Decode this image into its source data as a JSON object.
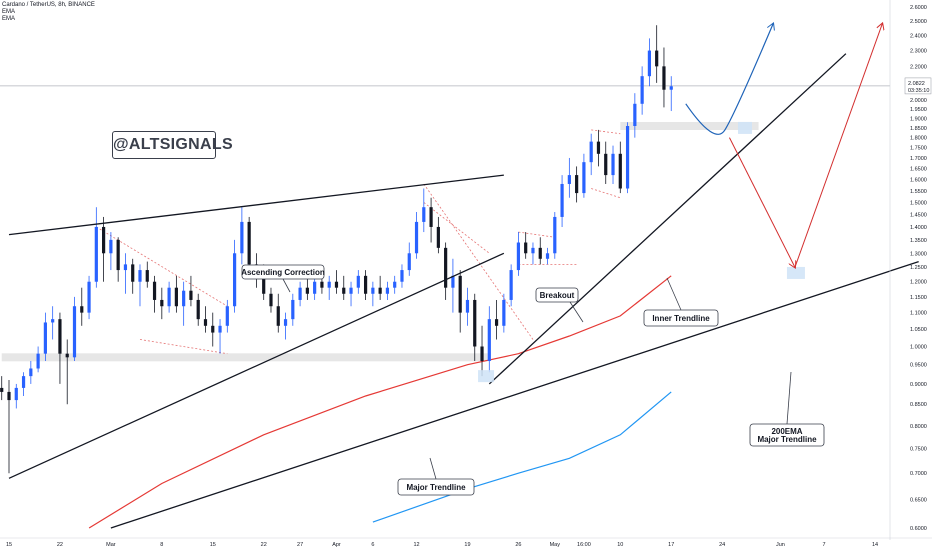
{
  "header": {
    "title": "Cardano / TetherUS, 8h, BINANCE",
    "indicators": [
      "EMA",
      "EMA"
    ]
  },
  "watermark": "@ALTSIGNALS",
  "price_labels": {
    "current_price": "2.0822",
    "countdown": "03:35:10"
  },
  "annotations": {
    "ascending_correction": "Ascending Correction",
    "breakout": "Breakout",
    "inner_trendline": "Inner Trendline",
    "major_trendline": "Major Trendline",
    "ema_major_line1": "200EMA",
    "ema_major_line2": "Major Trendline"
  },
  "colors": {
    "up": "#2962ff",
    "down": "#131722",
    "ema200": "#e53935",
    "ema_fast": "#2196f3",
    "projection_up": "#1e63b8",
    "projection_path": "#d32f2f",
    "zone": "#e6e6e6",
    "target_box": "#cfe3f7",
    "price_line": "#b0b3bb"
  },
  "chart_data": {
    "type": "candlestick",
    "title": "Cardano / TetherUS, 8h, BINANCE",
    "xlabel": "",
    "ylabel": "",
    "ylim": [
      0.6,
      2.6
    ],
    "y_scale": "log",
    "y_ticks": [
      "2.6000",
      "2.5000",
      "2.4000",
      "2.3000",
      "2.2000",
      "2.1000",
      "2.0000",
      "1.9500",
      "1.9000",
      "1.8500",
      "1.8000",
      "1.7500",
      "1.7000",
      "1.6500",
      "1.6000",
      "1.5500",
      "1.5000",
      "1.4500",
      "1.4000",
      "1.3500",
      "1.3000",
      "1.2500",
      "1.2000",
      "1.1500",
      "1.1000",
      "1.0500",
      "1.0000",
      "0.9500",
      "0.9000",
      "0.8500",
      "0.8000",
      "0.7500",
      "0.7000",
      "0.6500",
      "0.6000"
    ],
    "x_ticks": [
      {
        "label": "15",
        "date": "2021-02-15"
      },
      {
        "label": "22",
        "date": "2021-02-22"
      },
      {
        "label": "Mar",
        "date": "2021-03-01"
      },
      {
        "label": "8",
        "date": "2021-03-08"
      },
      {
        "label": "15",
        "date": "2021-03-15"
      },
      {
        "label": "22",
        "date": "2021-03-22"
      },
      {
        "label": "27",
        "date": "2021-03-27"
      },
      {
        "label": "Apr",
        "date": "2021-04-01"
      },
      {
        "label": "6",
        "date": "2021-04-06"
      },
      {
        "label": "12",
        "date": "2021-04-12"
      },
      {
        "label": "19",
        "date": "2021-04-19"
      },
      {
        "label": "26",
        "date": "2021-04-26"
      },
      {
        "label": "May",
        "date": "2021-05-01"
      },
      {
        "label": "16:00",
        "date": "2021-05-05"
      },
      {
        "label": "10",
        "date": "2021-05-10"
      },
      {
        "label": "17",
        "date": "2021-05-17"
      },
      {
        "label": "24",
        "date": "2021-05-24"
      },
      {
        "label": "Jun",
        "date": "2021-06-01"
      },
      {
        "label": "7",
        "date": "2021-06-07"
      },
      {
        "label": "14",
        "date": "2021-06-14"
      }
    ],
    "ohlc": [
      [
        "2021-02-14",
        0.89,
        0.92,
        0.86,
        0.88
      ],
      [
        "2021-02-15",
        0.88,
        0.91,
        0.7,
        0.86
      ],
      [
        "2021-02-16",
        0.86,
        0.9,
        0.84,
        0.89
      ],
      [
        "2021-02-17",
        0.89,
        0.93,
        0.87,
        0.92
      ],
      [
        "2021-02-18",
        0.92,
        0.96,
        0.9,
        0.94
      ],
      [
        "2021-02-19",
        0.94,
        1.0,
        0.93,
        0.98
      ],
      [
        "2021-02-20",
        0.98,
        1.1,
        0.96,
        1.07
      ],
      [
        "2021-02-21",
        1.07,
        1.12,
        1.02,
        1.08
      ],
      [
        "2021-02-22",
        1.08,
        1.1,
        0.9,
        0.98
      ],
      [
        "2021-02-23",
        0.98,
        1.02,
        0.85,
        0.97
      ],
      [
        "2021-02-24",
        0.97,
        1.15,
        0.96,
        1.12
      ],
      [
        "2021-02-25",
        1.12,
        1.18,
        1.06,
        1.1
      ],
      [
        "2021-02-26",
        1.1,
        1.22,
        1.08,
        1.2
      ],
      [
        "2021-02-27",
        1.2,
        1.48,
        1.18,
        1.4
      ],
      [
        "2021-02-28",
        1.4,
        1.44,
        1.2,
        1.3
      ],
      [
        "2021-03-01",
        1.3,
        1.38,
        1.24,
        1.35
      ],
      [
        "2021-03-02",
        1.35,
        1.36,
        1.2,
        1.24
      ],
      [
        "2021-03-03",
        1.24,
        1.3,
        1.16,
        1.26
      ],
      [
        "2021-03-04",
        1.26,
        1.28,
        1.16,
        1.2
      ],
      [
        "2021-03-05",
        1.2,
        1.26,
        1.12,
        1.24
      ],
      [
        "2021-03-06",
        1.24,
        1.27,
        1.18,
        1.2
      ],
      [
        "2021-03-07",
        1.2,
        1.22,
        1.1,
        1.14
      ],
      [
        "2021-03-08",
        1.14,
        1.18,
        1.08,
        1.12
      ],
      [
        "2021-03-09",
        1.12,
        1.2,
        1.1,
        1.18
      ],
      [
        "2021-03-10",
        1.18,
        1.22,
        1.1,
        1.12
      ],
      [
        "2021-03-11",
        1.12,
        1.2,
        1.06,
        1.17
      ],
      [
        "2021-03-12",
        1.17,
        1.22,
        1.12,
        1.14
      ],
      [
        "2021-03-13",
        1.14,
        1.16,
        1.06,
        1.08
      ],
      [
        "2021-03-14",
        1.08,
        1.12,
        1.04,
        1.06
      ],
      [
        "2021-03-15",
        1.06,
        1.1,
        1.0,
        1.04
      ],
      [
        "2021-03-16",
        1.04,
        1.08,
        0.98,
        1.06
      ],
      [
        "2021-03-17",
        1.06,
        1.14,
        1.04,
        1.12
      ],
      [
        "2021-03-18",
        1.12,
        1.35,
        1.1,
        1.3
      ],
      [
        "2021-03-19",
        1.3,
        1.48,
        1.26,
        1.42
      ],
      [
        "2021-03-20",
        1.42,
        1.44,
        1.22,
        1.26
      ],
      [
        "2021-03-21",
        1.26,
        1.3,
        1.18,
        1.24
      ],
      [
        "2021-03-22",
        1.24,
        1.26,
        1.14,
        1.16
      ],
      [
        "2021-03-23",
        1.16,
        1.18,
        1.1,
        1.12
      ],
      [
        "2021-03-24",
        1.12,
        1.16,
        1.04,
        1.06
      ],
      [
        "2021-03-25",
        1.06,
        1.1,
        1.02,
        1.08
      ],
      [
        "2021-03-26",
        1.08,
        1.16,
        1.06,
        1.14
      ],
      [
        "2021-03-27",
        1.14,
        1.2,
        1.12,
        1.18
      ],
      [
        "2021-03-28",
        1.18,
        1.24,
        1.14,
        1.16
      ],
      [
        "2021-03-29",
        1.16,
        1.22,
        1.14,
        1.2
      ],
      [
        "2021-03-30",
        1.2,
        1.24,
        1.16,
        1.18
      ],
      [
        "2021-03-31",
        1.18,
        1.22,
        1.14,
        1.2
      ],
      [
        "2021-04-01",
        1.2,
        1.24,
        1.16,
        1.18
      ],
      [
        "2021-04-02",
        1.18,
        1.22,
        1.14,
        1.16
      ],
      [
        "2021-04-03",
        1.16,
        1.2,
        1.12,
        1.18
      ],
      [
        "2021-04-04",
        1.18,
        1.24,
        1.16,
        1.22
      ],
      [
        "2021-04-05",
        1.22,
        1.24,
        1.14,
        1.16
      ],
      [
        "2021-04-06",
        1.16,
        1.2,
        1.12,
        1.18
      ],
      [
        "2021-04-07",
        1.18,
        1.22,
        1.14,
        1.16
      ],
      [
        "2021-04-08",
        1.16,
        1.2,
        1.14,
        1.18
      ],
      [
        "2021-04-09",
        1.18,
        1.22,
        1.16,
        1.2
      ],
      [
        "2021-04-10",
        1.2,
        1.26,
        1.18,
        1.24
      ],
      [
        "2021-04-11",
        1.24,
        1.34,
        1.22,
        1.3
      ],
      [
        "2021-04-12",
        1.3,
        1.46,
        1.28,
        1.42
      ],
      [
        "2021-04-13",
        1.42,
        1.56,
        1.38,
        1.48
      ],
      [
        "2021-04-14",
        1.48,
        1.52,
        1.34,
        1.4
      ],
      [
        "2021-04-15",
        1.4,
        1.44,
        1.3,
        1.32
      ],
      [
        "2021-04-16",
        1.32,
        1.34,
        1.14,
        1.18
      ],
      [
        "2021-04-17",
        1.18,
        1.28,
        1.1,
        1.22
      ],
      [
        "2021-04-18",
        1.22,
        1.24,
        1.04,
        1.1
      ],
      [
        "2021-04-19",
        1.1,
        1.18,
        1.06,
        1.14
      ],
      [
        "2021-04-20",
        1.14,
        1.16,
        0.96,
        1.0
      ],
      [
        "2021-04-21",
        1.0,
        1.06,
        0.92,
        0.96
      ],
      [
        "2021-04-22",
        0.96,
        1.12,
        0.93,
        1.08
      ],
      [
        "2021-04-23",
        1.08,
        1.14,
        1.02,
        1.06
      ],
      [
        "2021-04-24",
        1.06,
        1.16,
        1.04,
        1.14
      ],
      [
        "2021-04-25",
        1.14,
        1.26,
        1.12,
        1.24
      ],
      [
        "2021-04-26",
        1.24,
        1.38,
        1.22,
        1.34
      ],
      [
        "2021-04-27",
        1.34,
        1.38,
        1.28,
        1.3
      ],
      [
        "2021-04-28",
        1.3,
        1.34,
        1.26,
        1.32
      ],
      [
        "2021-04-29",
        1.32,
        1.36,
        1.26,
        1.28
      ],
      [
        "2021-04-30",
        1.28,
        1.32,
        1.26,
        1.3
      ],
      [
        "2021-05-01",
        1.3,
        1.46,
        1.28,
        1.44
      ],
      [
        "2021-05-02",
        1.44,
        1.62,
        1.4,
        1.58
      ],
      [
        "2021-05-03",
        1.58,
        1.7,
        1.52,
        1.62
      ],
      [
        "2021-05-04",
        1.62,
        1.66,
        1.5,
        1.54
      ],
      [
        "2021-05-05",
        1.54,
        1.72,
        1.52,
        1.68
      ],
      [
        "2021-05-06",
        1.68,
        1.82,
        1.62,
        1.78
      ],
      [
        "2021-05-07",
        1.78,
        1.84,
        1.66,
        1.72
      ],
      [
        "2021-05-08",
        1.72,
        1.78,
        1.58,
        1.62
      ],
      [
        "2021-05-09",
        1.62,
        1.76,
        1.58,
        1.72
      ],
      [
        "2021-05-10",
        1.72,
        1.78,
        1.54,
        1.56
      ],
      [
        "2021-05-11",
        1.56,
        1.88,
        1.54,
        1.86
      ],
      [
        "2021-05-12",
        1.86,
        2.04,
        1.8,
        1.98
      ],
      [
        "2021-05-13",
        1.98,
        2.2,
        1.92,
        2.14
      ],
      [
        "2021-05-14",
        2.14,
        2.38,
        2.08,
        2.3
      ],
      [
        "2021-05-15",
        2.3,
        2.47,
        2.1,
        2.2
      ],
      [
        "2021-05-16",
        2.2,
        2.32,
        1.96,
        2.06
      ],
      [
        "2021-05-17",
        2.06,
        2.14,
        1.94,
        2.08
      ]
    ],
    "ema200": [
      [
        "2021-02-26",
        0.6
      ],
      [
        "2021-03-08",
        0.68
      ],
      [
        "2021-03-22",
        0.78
      ],
      [
        "2021-04-05",
        0.87
      ],
      [
        "2021-04-19",
        0.95
      ],
      [
        "2021-04-26",
        0.98
      ],
      [
        "2021-05-03",
        1.03
      ],
      [
        "2021-05-10",
        1.09
      ],
      [
        "2021-05-17",
        1.22
      ]
    ],
    "ema_fast": [
      [
        "2021-04-06",
        0.61
      ],
      [
        "2021-04-19",
        0.67
      ],
      [
        "2021-04-26",
        0.7
      ],
      [
        "2021-05-03",
        0.73
      ],
      [
        "2021-05-10",
        0.78
      ],
      [
        "2021-05-17",
        0.88
      ]
    ],
    "trendlines": [
      {
        "name": "Ascending Correction upper",
        "from": [
          "2021-02-15",
          1.37
        ],
        "to": [
          "2021-04-24",
          1.62
        ]
      },
      {
        "name": "Lower correction support",
        "from": [
          "2021-02-15",
          0.69
        ],
        "to": [
          "2021-04-24",
          1.3
        ]
      },
      {
        "name": "Major Trendline",
        "from": [
          "2021-03-01",
          0.6
        ],
        "to": [
          "2021-06-20",
          1.27
        ]
      },
      {
        "name": "Inner Trendline",
        "from": [
          "2021-04-22",
          0.9
        ],
        "to": [
          "2021-06-10",
          2.28
        ]
      }
    ],
    "zones": [
      {
        "from": "2021-02-14",
        "to": "2021-04-22",
        "low": 0.95,
        "high": 0.97
      },
      {
        "from": "2021-05-10",
        "to": "2021-05-29",
        "low": 1.84,
        "high": 1.86
      }
    ],
    "projections": [
      {
        "name": "pullback then rally",
        "points": [
          [
            "2021-05-19",
            1.98
          ],
          [
            "2021-05-23",
            1.85
          ],
          [
            "2021-05-27",
            2.0
          ],
          [
            "2021-05-31",
            2.48
          ]
        ]
      },
      {
        "name": "deeper path down",
        "points": [
          [
            "2021-05-25",
            1.8
          ],
          [
            "2021-06-03",
            1.25
          ]
        ]
      },
      {
        "name": "deeper path rally",
        "points": [
          [
            "2021-06-03",
            1.25
          ],
          [
            "2021-06-15",
            2.48
          ]
        ]
      }
    ]
  }
}
